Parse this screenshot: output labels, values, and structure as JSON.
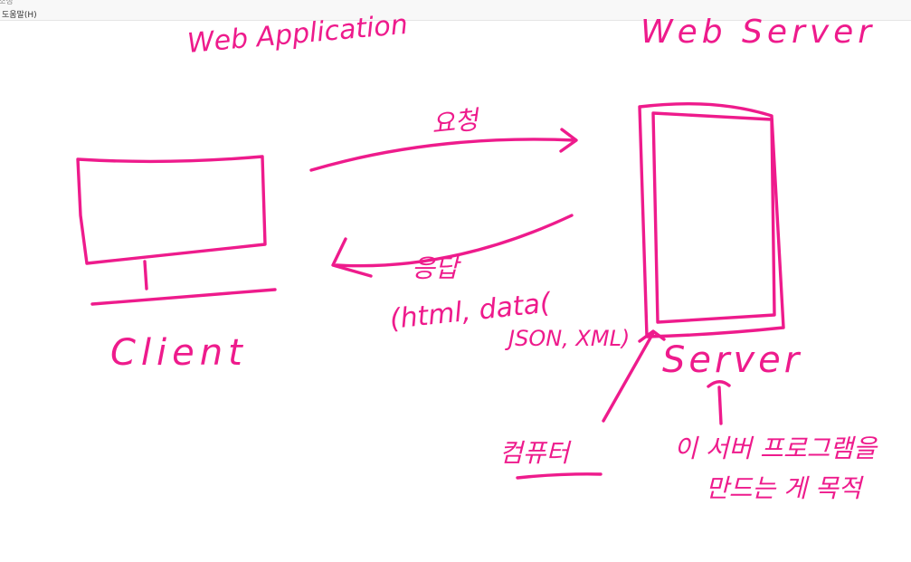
{
  "menubar": {
    "cut_item": "조정",
    "help_item": "도움말(H)"
  },
  "labels": {
    "web_application": "Web Application",
    "web_server": "Web Server",
    "request": "요청",
    "response": "응답",
    "response_formats_line1": "(html, data(",
    "response_formats_line2": "JSON, XML)",
    "client": "Client",
    "server": "Server",
    "computer": "컴퓨터",
    "server_program_line1": "이 서버 프로그램을",
    "server_program_line2": "만드는 게 목적"
  },
  "colors": {
    "ink": "#ee1b8c",
    "background": "#ffffff"
  }
}
